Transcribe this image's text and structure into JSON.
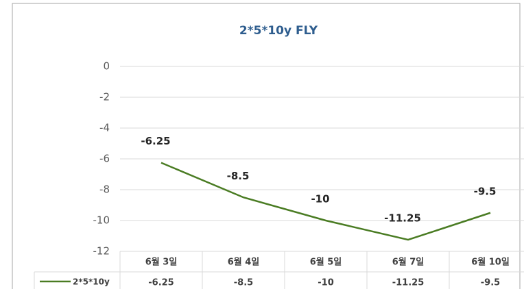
{
  "chart_data": {
    "type": "line",
    "title": "2*5*10y FLY",
    "categories": [
      "6월 3일",
      "6월 4일",
      "6월 5일",
      "6월 7일",
      "6월 10일"
    ],
    "series": [
      {
        "name": "2*5*10y",
        "color": "#4a7c23",
        "values": [
          -6.25,
          -8.5,
          -10,
          -11.25,
          -9.5
        ]
      }
    ],
    "ylim": [
      -12,
      0
    ],
    "yticks": [
      0,
      -2,
      -4,
      -6,
      -8,
      -10,
      -12
    ],
    "grid": true
  }
}
